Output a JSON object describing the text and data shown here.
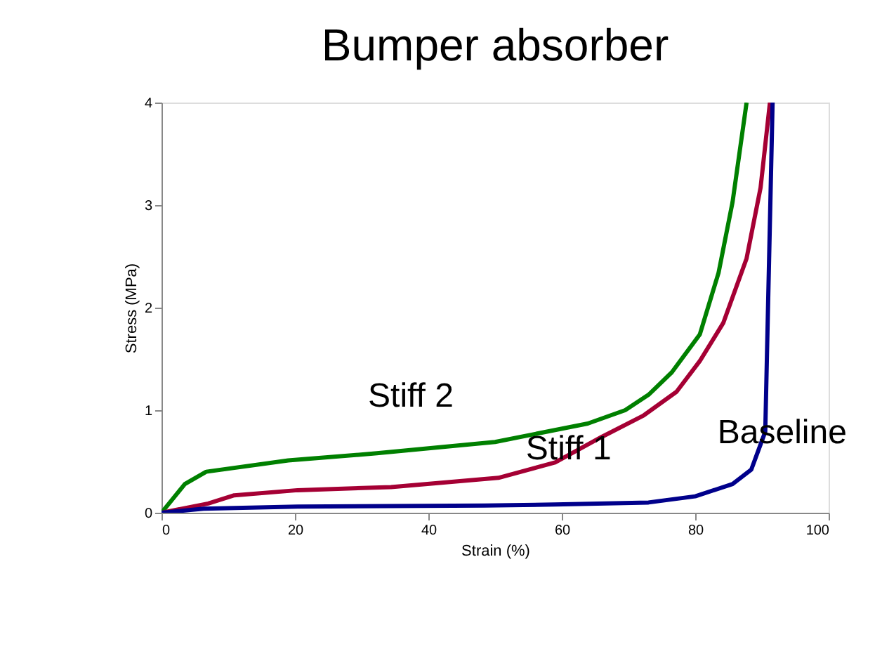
{
  "chart_data": {
    "type": "line",
    "title": "Bumper absorber",
    "xlabel": "Strain (%)",
    "ylabel": "Stress (MPa)",
    "xlim": [
      0,
      100
    ],
    "xticks": [
      0,
      20,
      40,
      60,
      80,
      100
    ],
    "ylim": [
      0,
      4
    ],
    "yticks": [
      0,
      1,
      2,
      3,
      4
    ],
    "grid": false,
    "legend": false,
    "line_style": "solid",
    "series": [
      {
        "name": "Stiff 2",
        "color": "#008000",
        "x": [
          0,
          3.5,
          6.7,
          19,
          32.3,
          50,
          63.9,
          69.5,
          73,
          76.5,
          80.7,
          83.5,
          85.6,
          87.7
        ],
        "values": [
          0,
          0.28,
          0.4,
          0.51,
          0.58,
          0.69,
          0.87,
          1.0,
          1.15,
          1.37,
          1.74,
          2.34,
          3.03,
          4.0
        ]
      },
      {
        "name": "Stiff 1",
        "color": "#a50034",
        "x": [
          0,
          7,
          10.9,
          20.4,
          34.4,
          50.5,
          59,
          66,
          72.3,
          77.2,
          80.7,
          84.2,
          87.7,
          89.8,
          91.2
        ],
        "values": [
          0,
          0.09,
          0.17,
          0.22,
          0.25,
          0.34,
          0.49,
          0.74,
          0.95,
          1.18,
          1.48,
          1.85,
          2.48,
          3.17,
          4.0
        ]
      },
      {
        "name": "Baseline",
        "color": "#00008b",
        "x": [
          0,
          6.3,
          20.4,
          48.4,
          59,
          73,
          80,
          85.6,
          88.4,
          90.5,
          91.6
        ],
        "values": [
          0,
          0.04,
          0.06,
          0.07,
          0.08,
          0.1,
          0.16,
          0.28,
          0.42,
          0.79,
          4.0
        ]
      }
    ]
  }
}
